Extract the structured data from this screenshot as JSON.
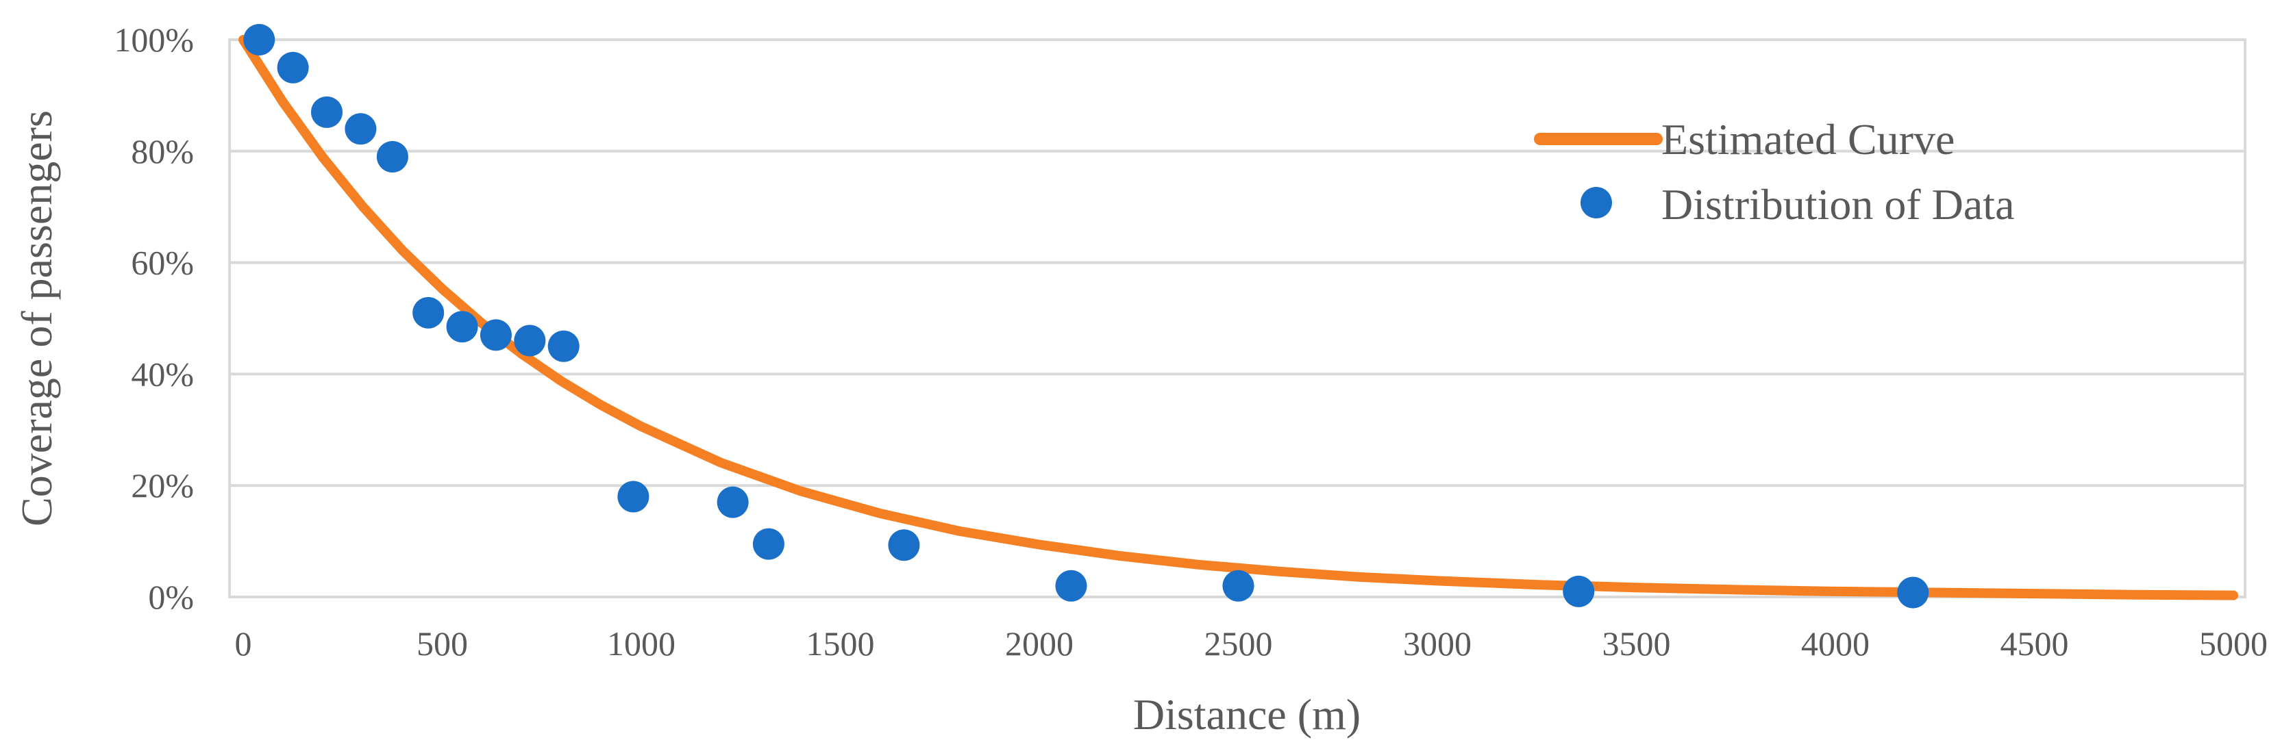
{
  "chart_data": {
    "type": "scatter",
    "title": "",
    "xlabel": "Distance (m)",
    "ylabel": "Coverage of passengers",
    "xlim": [
      0,
      5000
    ],
    "ylim": [
      0,
      1
    ],
    "x_ticks": [
      0,
      500,
      1000,
      1500,
      2000,
      2500,
      3000,
      3500,
      4000,
      4500,
      5000
    ],
    "x_tick_labels": [
      "0",
      "500",
      "1000",
      "1500",
      "2000",
      "2500",
      "3000",
      "3500",
      "4000",
      "4500",
      "5000"
    ],
    "y_ticks": [
      0,
      0.2,
      0.4,
      0.6,
      0.8,
      1.0
    ],
    "y_tick_labels": [
      "0%",
      "20%",
      "40%",
      "60%",
      "80%",
      "100%"
    ],
    "grid": "horizontal",
    "legend_position": "top-right",
    "series": [
      {
        "name": "Estimated Curve",
        "kind": "line",
        "color": "#f58024",
        "x": [
          0,
          100,
          200,
          300,
          400,
          500,
          600,
          700,
          800,
          900,
          1000,
          1200,
          1400,
          1600,
          1800,
          2000,
          2200,
          2400,
          2600,
          2800,
          3000,
          3250,
          3500,
          3750,
          4000,
          4250,
          4500,
          4750,
          5000
        ],
        "y": [
          1.0,
          0.888,
          0.789,
          0.701,
          0.622,
          0.553,
          0.491,
          0.436,
          0.387,
          0.344,
          0.306,
          0.241,
          0.19,
          0.15,
          0.118,
          0.094,
          0.074,
          0.058,
          0.046,
          0.036,
          0.029,
          0.022,
          0.017,
          0.013,
          0.01,
          0.008,
          0.006,
          0.004,
          0.003
        ]
      },
      {
        "name": "Distribution of Data",
        "kind": "scatter",
        "color": "#1a6fc9",
        "x": [
          40,
          125,
          210,
          295,
          375,
          465,
          550,
          635,
          720,
          805,
          980,
          1230,
          1320,
          1660,
          2080,
          2500,
          3355,
          4195
        ],
        "y": [
          1.0,
          0.95,
          0.87,
          0.84,
          0.79,
          0.51,
          0.485,
          0.47,
          0.46,
          0.45,
          0.18,
          0.17,
          0.095,
          0.093,
          0.02,
          0.02,
          0.01,
          0.008
        ]
      }
    ]
  }
}
